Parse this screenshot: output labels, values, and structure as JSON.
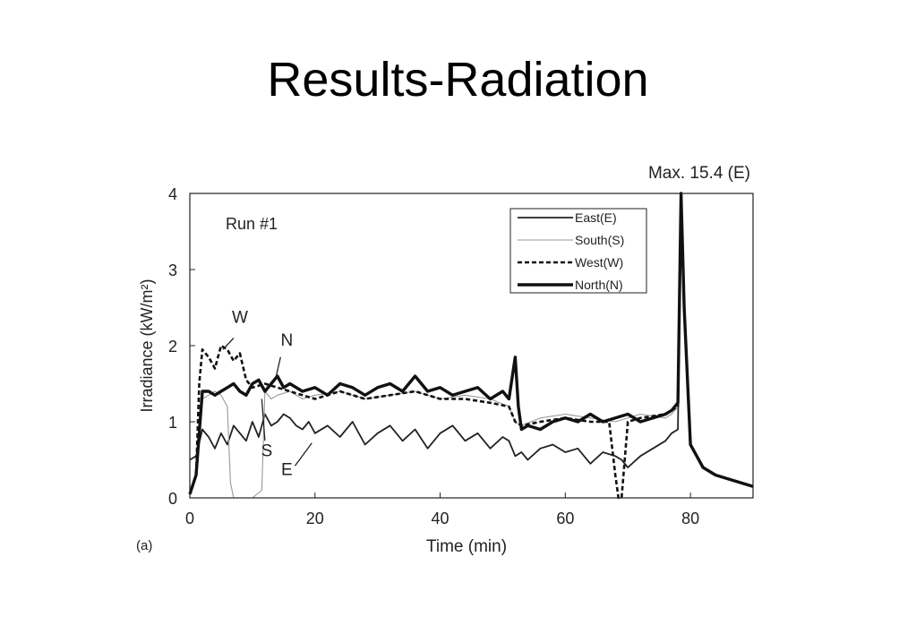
{
  "slide": {
    "title": "Results-Radiation"
  },
  "chart_data": {
    "type": "line",
    "panel_label": "(a)",
    "run_label": "Run #1",
    "max_annotation": "Max. 15.4 (E)",
    "xlabel": "Time (min)",
    "ylabel": "Irradiance (kW/m²)",
    "xlim": [
      0,
      90
    ],
    "ylim": [
      0,
      4
    ],
    "xticks": [
      0,
      20,
      40,
      60,
      80
    ],
    "yticks": [
      0,
      1,
      2,
      3,
      4
    ],
    "grid": false,
    "legend_position": "top-right",
    "annotations": [
      {
        "text": "W",
        "x": 8,
        "y": 2.3
      },
      {
        "text": "N",
        "x": 15.5,
        "y": 2.0
      },
      {
        "text": "S",
        "x": 12.3,
        "y": 0.55
      },
      {
        "text": "E",
        "x": 15.5,
        "y": 0.3
      }
    ],
    "series": [
      {
        "name": "East(E)",
        "style": "solid-thin",
        "x": [
          0,
          1,
          2,
          3,
          4,
          5,
          6,
          7,
          8,
          9,
          10,
          11,
          12,
          13,
          14,
          15,
          16,
          17,
          18,
          19,
          20,
          22,
          24,
          26,
          28,
          30,
          32,
          34,
          36,
          38,
          40,
          42,
          44,
          46,
          48,
          50,
          51,
          52,
          53,
          54,
          56,
          58,
          60,
          62,
          64,
          66,
          68,
          69,
          70,
          72,
          74,
          76,
          77,
          78,
          78.5,
          79,
          80,
          82,
          84,
          86,
          88,
          90
        ],
        "y": [
          0.5,
          0.55,
          0.9,
          0.8,
          0.65,
          0.85,
          0.7,
          0.95,
          0.85,
          0.75,
          1.0,
          0.8,
          1.1,
          0.95,
          1.0,
          1.1,
          1.05,
          0.95,
          0.9,
          1.0,
          0.85,
          0.95,
          0.8,
          1.0,
          0.7,
          0.85,
          0.95,
          0.75,
          0.9,
          0.65,
          0.85,
          0.95,
          0.75,
          0.85,
          0.65,
          0.8,
          0.75,
          0.55,
          0.6,
          0.5,
          0.65,
          0.7,
          0.6,
          0.65,
          0.45,
          0.6,
          0.55,
          0.5,
          0.4,
          0.55,
          0.65,
          0.75,
          0.85,
          0.9,
          4.0,
          2.5,
          0.7,
          0.4,
          0.3,
          0.25,
          0.2,
          0.15
        ]
      },
      {
        "name": "South(S)",
        "style": "solid-thin-gray",
        "x": [
          0,
          1,
          2,
          3,
          4,
          5,
          6,
          6.5,
          7,
          10,
          11.5,
          12,
          13,
          14,
          16,
          18,
          20,
          24,
          28,
          32,
          36,
          40,
          44,
          48,
          51,
          52,
          53,
          56,
          60,
          64,
          68,
          72,
          76,
          77,
          78,
          78.5,
          79,
          80,
          82,
          84,
          86,
          88,
          90
        ],
        "y": [
          0.05,
          0.3,
          1.3,
          1.35,
          1.4,
          1.35,
          1.2,
          0.2,
          0.0,
          0.0,
          0.1,
          1.4,
          1.3,
          1.35,
          1.4,
          1.3,
          1.35,
          1.4,
          1.3,
          1.35,
          1.4,
          1.3,
          1.35,
          1.3,
          1.2,
          1.0,
          0.95,
          1.05,
          1.1,
          1.05,
          1.0,
          1.1,
          1.05,
          1.1,
          1.2,
          4.0,
          2.5,
          0.7,
          0.4,
          0.3,
          0.25,
          0.2,
          0.15
        ]
      },
      {
        "name": "West(W)",
        "style": "dashed",
        "x": [
          0,
          1,
          1.5,
          2,
          3,
          4,
          5,
          6,
          7,
          8,
          9,
          10,
          12,
          14,
          16,
          18,
          20,
          24,
          28,
          32,
          36,
          40,
          44,
          48,
          51,
          52,
          53,
          56,
          60,
          64,
          67,
          68,
          68.5,
          69,
          69.5,
          70,
          72,
          76,
          77,
          78,
          78.5,
          79,
          80,
          82,
          84,
          86,
          88,
          90
        ],
        "y": [
          0.05,
          0.3,
          1.5,
          1.95,
          1.85,
          1.7,
          2.0,
          1.95,
          1.8,
          1.9,
          1.55,
          1.45,
          1.5,
          1.45,
          1.4,
          1.35,
          1.3,
          1.4,
          1.3,
          1.35,
          1.4,
          1.3,
          1.3,
          1.25,
          1.2,
          1.0,
          0.95,
          1.0,
          1.05,
          1.0,
          1.0,
          0.3,
          0.0,
          0.0,
          0.5,
          1.0,
          1.05,
          1.1,
          1.15,
          1.2,
          4.0,
          2.5,
          0.7,
          0.4,
          0.3,
          0.25,
          0.2,
          0.15
        ]
      },
      {
        "name": "North(N)",
        "style": "solid-thick",
        "x": [
          0,
          1,
          2,
          3,
          4,
          5,
          6,
          7,
          8,
          9,
          10,
          11,
          12,
          13,
          14,
          15,
          16,
          18,
          20,
          22,
          24,
          26,
          28,
          30,
          32,
          34,
          36,
          38,
          40,
          42,
          44,
          46,
          48,
          50,
          51,
          52,
          52.5,
          53,
          54,
          56,
          58,
          60,
          62,
          64,
          66,
          68,
          70,
          72,
          74,
          76,
          77,
          78,
          78.5,
          79,
          80,
          82,
          84,
          86,
          88,
          90
        ],
        "y": [
          0.05,
          0.3,
          1.4,
          1.4,
          1.35,
          1.4,
          1.45,
          1.5,
          1.4,
          1.35,
          1.5,
          1.55,
          1.4,
          1.5,
          1.6,
          1.45,
          1.5,
          1.4,
          1.45,
          1.35,
          1.5,
          1.45,
          1.35,
          1.45,
          1.5,
          1.4,
          1.6,
          1.4,
          1.45,
          1.35,
          1.4,
          1.45,
          1.3,
          1.4,
          1.3,
          1.85,
          1.2,
          0.9,
          0.95,
          0.9,
          1.0,
          1.05,
          1.0,
          1.1,
          1.0,
          1.05,
          1.1,
          1.0,
          1.05,
          1.1,
          1.15,
          1.25,
          4.0,
          2.5,
          0.7,
          0.4,
          0.3,
          0.25,
          0.2,
          0.15
        ]
      }
    ]
  }
}
